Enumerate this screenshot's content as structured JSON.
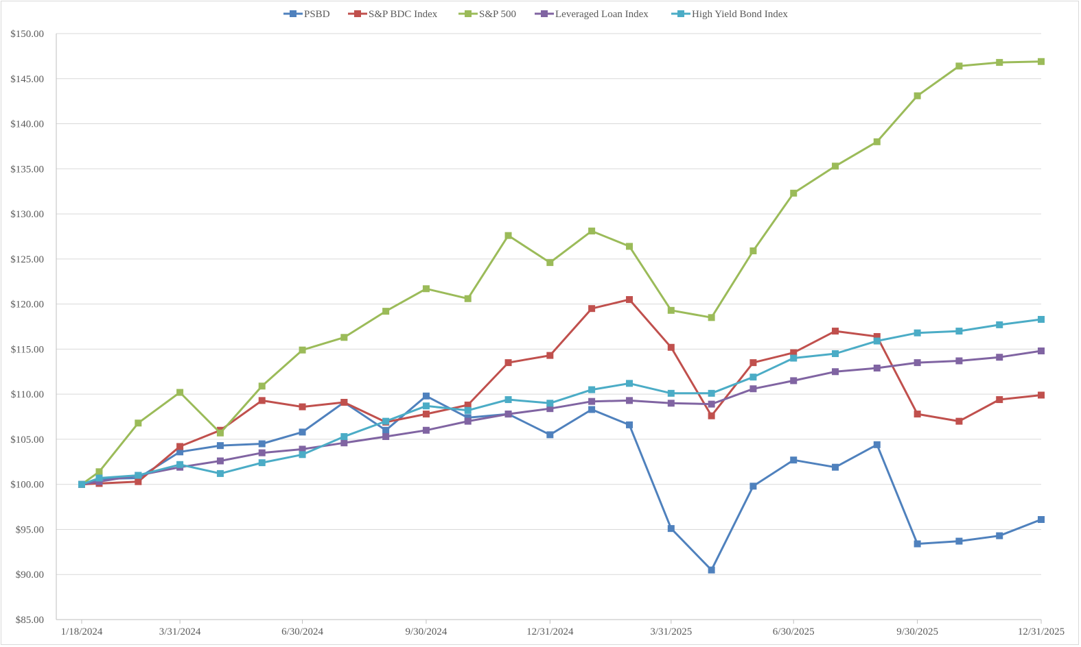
{
  "chart_data": {
    "type": "line",
    "title": "",
    "xlabel": "",
    "ylabel": "",
    "ylim": [
      85,
      150
    ],
    "y_ticks": [
      "$85.00",
      "$90.00",
      "$95.00",
      "$100.00",
      "$105.00",
      "$110.00",
      "$115.00",
      "$120.00",
      "$125.00",
      "$130.00",
      "$135.00",
      "$140.00",
      "$145.00",
      "$150.00"
    ],
    "y_tick_values": [
      85,
      90,
      95,
      100,
      105,
      110,
      115,
      120,
      125,
      130,
      135,
      140,
      145,
      150
    ],
    "x_dates": [
      "2024-01-18",
      "2024-01-31",
      "2024-02-29",
      "2024-03-31",
      "2024-04-30",
      "2024-05-31",
      "2024-06-30",
      "2024-07-31",
      "2024-08-31",
      "2024-09-30",
      "2024-10-31",
      "2024-11-30",
      "2024-12-31",
      "2025-01-31",
      "2025-02-28",
      "2025-03-31",
      "2025-04-30",
      "2025-05-31",
      "2025-06-30",
      "2025-07-31",
      "2025-08-31",
      "2025-09-30",
      "2025-10-31",
      "2025-11-30",
      "2025-12-31"
    ],
    "x_ticks": [
      {
        "label": "1/18/2024",
        "date": "2024-01-18"
      },
      {
        "label": "3/31/2024",
        "date": "2024-03-31"
      },
      {
        "label": "6/30/2024",
        "date": "2024-06-30"
      },
      {
        "label": "9/30/2024",
        "date": "2024-09-30"
      },
      {
        "label": "12/31/2024",
        "date": "2024-12-31"
      },
      {
        "label": "3/31/2025",
        "date": "2025-03-31"
      },
      {
        "label": "6/30/2025",
        "date": "2025-06-30"
      },
      {
        "label": "9/30/2025",
        "date": "2025-09-30"
      },
      {
        "label": "12/31/2025",
        "date": "2025-12-31"
      }
    ],
    "legend_position": "top-center",
    "grid": "horizontal",
    "series": [
      {
        "name": "PSBD",
        "color": "#4f81bd",
        "marker": "square",
        "values": [
          100.0,
          100.6,
          100.7,
          103.6,
          104.3,
          104.5,
          105.8,
          109.1,
          106.0,
          109.8,
          107.4,
          107.8,
          105.5,
          108.3,
          106.6,
          95.1,
          90.5,
          99.8,
          102.7,
          101.9,
          104.4,
          93.4,
          93.7,
          94.3,
          96.1
        ]
      },
      {
        "name": "S&P BDC Index",
        "color": "#c0504d",
        "marker": "square",
        "values": [
          100.0,
          100.1,
          100.3,
          104.2,
          106.0,
          109.3,
          108.6,
          109.1,
          106.9,
          107.8,
          108.8,
          113.5,
          114.3,
          119.5,
          120.5,
          115.2,
          107.6,
          113.5,
          114.6,
          117.0,
          116.4,
          107.8,
          107.0,
          109.4,
          109.9
        ]
      },
      {
        "name": "S&P 500",
        "color": "#9bbb59",
        "marker": "square",
        "values": [
          100.0,
          101.4,
          106.8,
          110.2,
          105.7,
          110.9,
          114.9,
          116.3,
          119.2,
          121.7,
          120.6,
          127.6,
          124.6,
          128.1,
          126.4,
          119.3,
          118.5,
          125.9,
          132.3,
          135.3,
          138.0,
          143.1,
          146.4,
          146.8,
          146.9
        ]
      },
      {
        "name": "Leveraged Loan Index",
        "color": "#8064a2",
        "marker": "square",
        "values": [
          100.0,
          100.3,
          101.0,
          101.9,
          102.6,
          103.5,
          103.9,
          104.6,
          105.3,
          106.0,
          107.0,
          107.8,
          108.4,
          109.2,
          109.3,
          109.0,
          108.9,
          110.6,
          111.5,
          112.5,
          112.9,
          113.5,
          113.7,
          114.1,
          114.8
        ]
      },
      {
        "name": "High Yield Bond Index",
        "color": "#4bacc6",
        "marker": "square",
        "values": [
          100.0,
          100.7,
          101.0,
          102.2,
          101.2,
          102.4,
          103.3,
          105.3,
          107.0,
          108.7,
          108.2,
          109.4,
          109.0,
          110.5,
          111.2,
          110.1,
          110.1,
          111.9,
          114.0,
          114.5,
          115.9,
          116.8,
          117.0,
          117.7,
          118.3
        ]
      }
    ]
  }
}
